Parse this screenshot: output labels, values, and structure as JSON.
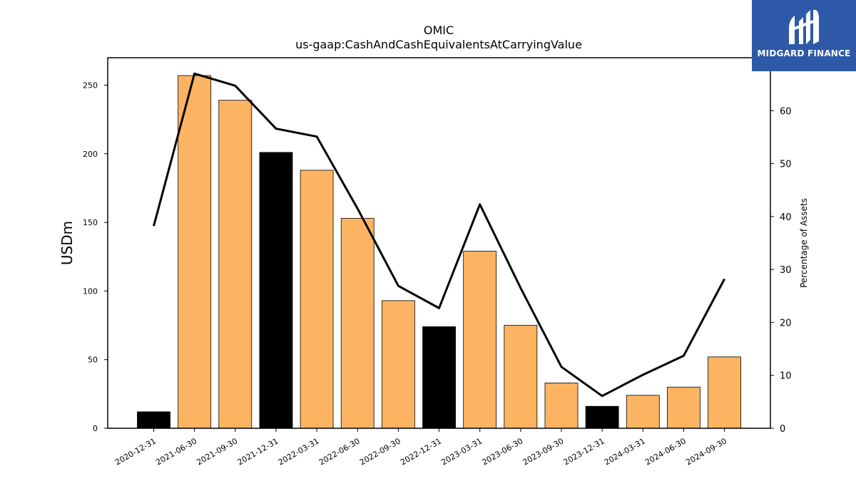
{
  "chart_data": {
    "type": "bar",
    "title": "OMIC",
    "subtitle": "us-gaap:CashAndCashEquivalentsAtCarryingValue",
    "ylabel": "USDm",
    "y2label": "Percentage of Assets",
    "ylim": [
      0,
      270
    ],
    "y2lim": [
      0,
      70
    ],
    "yticks": [
      0,
      50,
      100,
      150,
      200,
      250
    ],
    "y2ticks": [
      0,
      10,
      20,
      30,
      40,
      50,
      60
    ],
    "grid": false,
    "categories": [
      "2020-12-31",
      "2021-06-30",
      "2021-09-30",
      "2021-12-31",
      "2022-03-31",
      "2022-06-30",
      "2022-09-30",
      "2022-12-31",
      "2023-03-31",
      "2023-06-30",
      "2023-09-30",
      "2023-12-31",
      "2024-03-31",
      "2024-06-30",
      "2024-09-30"
    ],
    "series": [
      {
        "type": "bar",
        "axis": "left",
        "values": [
          12,
          257,
          239,
          201,
          188,
          153,
          93,
          74,
          129,
          75,
          33,
          16,
          24,
          30,
          52
        ],
        "colors": [
          "#000000",
          "#fdb462",
          "#fdb462",
          "#000000",
          "#fdb462",
          "#fdb462",
          "#fdb462",
          "#000000",
          "#fdb462",
          "#fdb462",
          "#fdb462",
          "#000000",
          "#fdb462",
          "#fdb462",
          "#fdb462"
        ]
      },
      {
        "type": "line",
        "axis": "right",
        "values": [
          38.2,
          67.0,
          64.7,
          56.6,
          55.1,
          41.5,
          26.9,
          22.7,
          42.3,
          26.5,
          11.6,
          6.1,
          10.1,
          13.7,
          28.2
        ],
        "color": "#000000"
      }
    ]
  },
  "logo": {
    "text": "MIDGARD FINANCE",
    "background": "#2d59a8"
  }
}
